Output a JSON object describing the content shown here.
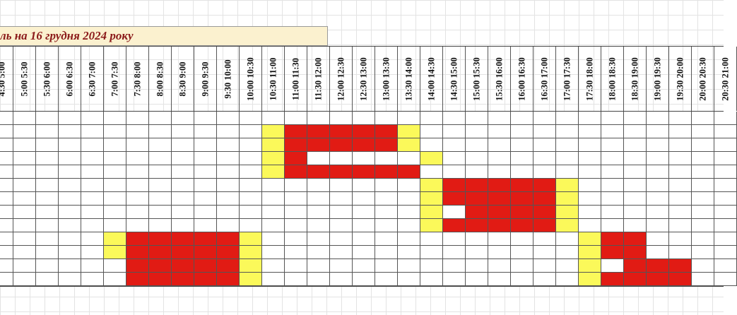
{
  "title": "ль на 16 грудня 2024 року",
  "time_slots": [
    "4:30 5:00",
    "5:00 5:30",
    "5:30 6:00",
    "6:00 6:30",
    "6:30 7:00",
    "7:00 7:30",
    "7:30 8:00",
    "8:00 8:30",
    "8:30 9:00",
    "9:00 9:30",
    "9:30 10:00",
    "10:00 10:30",
    "10:30 11:00",
    "11:00 11:30",
    "11:30 12:00",
    "12:00 12:30",
    "12:30 13:00",
    "13:00 13:30",
    "13:30 14:00",
    "14:00 14:30",
    "14:30 15:00",
    "15:00 15:30",
    "15:30 16:00",
    "16:00 16:30",
    "16:30 17:00",
    "17:00 17:30",
    "17:30 18:00",
    "18:00 18:30",
    "18:30 19:00",
    "19:00 19:30",
    "19:30 20:00",
    "20:00 20:30",
    "20:30 21:00"
  ],
  "legend_colors": {
    "outage": "#e11b14",
    "possible": "#fbf95a",
    "power_on": "#ffffff"
  },
  "rows": [
    "                                 ",
    "            yrrrrry              ",
    "            yrrrrry              ",
    "            yr     y             ",
    "            yrrrrrr              ",
    "                   yrrrrry       ",
    "                   yrrrrry       ",
    "                   y rrrry       ",
    "                   yrrrrry       ",
    "     yrrrrry              yrr    ",
    "     yrrrrry              yrr    ",
    "      rrrrry              y rrr  ",
    "      rrrrry              yrrrr  "
  ]
}
